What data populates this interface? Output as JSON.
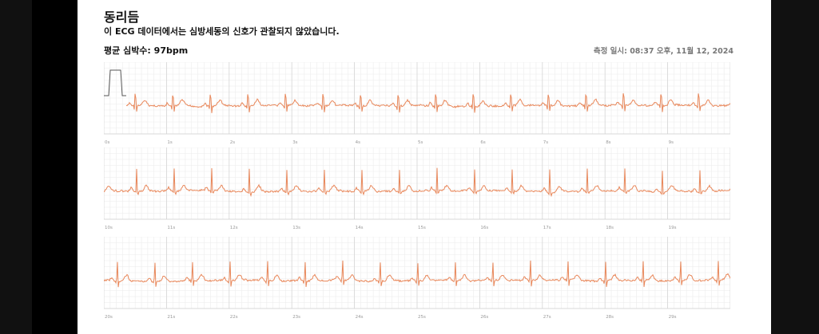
{
  "header": {
    "title": "동리듬",
    "subtitle": "이 ECG 데이터에서는 심방세동의 신호가 관찰되지 않았습니다."
  },
  "summary": {
    "avg_label": "평균 심박수:",
    "avg_value": "97bpm",
    "measured_at": "측정 일시: 08:37 오후, 11월 12, 2024"
  },
  "colors": {
    "trace": "#e8875a",
    "grid_minor": "#ececec",
    "grid_major": "#d6d6d6"
  },
  "strips": [
    {
      "start_s": 0,
      "ticks": [
        "0s",
        "1s",
        "2s",
        "3s",
        "4s",
        "5s",
        "6s",
        "7s",
        "8s",
        "9s"
      ]
    },
    {
      "start_s": 10,
      "ticks": [
        "10s",
        "11s",
        "12s",
        "13s",
        "14s",
        "15s",
        "16s",
        "17s",
        "18s",
        "19s"
      ]
    },
    {
      "start_s": 20,
      "ticks": [
        "20s",
        "21s",
        "22s",
        "23s",
        "24s",
        "25s",
        "26s",
        "27s",
        "28s",
        "29s"
      ]
    }
  ]
}
